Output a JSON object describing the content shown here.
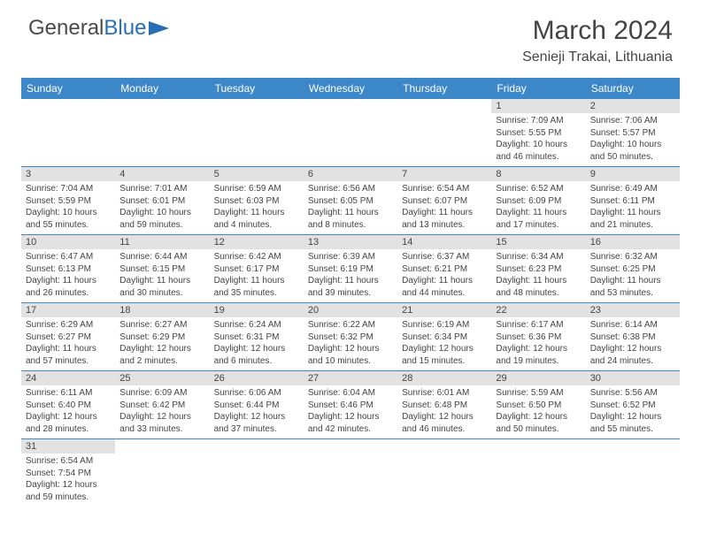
{
  "logo": {
    "part1": "General",
    "part2": "Blue"
  },
  "title": "March 2024",
  "location": "Senieji Trakai, Lithuania",
  "colors": {
    "header_bg": "#3b87c8",
    "header_text": "#ffffff",
    "daynum_bg": "#e2e2e2",
    "text": "#444444",
    "row_border": "#3b87c8",
    "logo_gray": "#4a4a4a",
    "logo_blue": "#2a6fb5"
  },
  "day_headers": [
    "Sunday",
    "Monday",
    "Tuesday",
    "Wednesday",
    "Thursday",
    "Friday",
    "Saturday"
  ],
  "weeks": [
    [
      null,
      null,
      null,
      null,
      null,
      {
        "n": "1",
        "sunrise": "7:09 AM",
        "sunset": "5:55 PM",
        "day_h": "10",
        "day_m": "46"
      },
      {
        "n": "2",
        "sunrise": "7:06 AM",
        "sunset": "5:57 PM",
        "day_h": "10",
        "day_m": "50"
      }
    ],
    [
      {
        "n": "3",
        "sunrise": "7:04 AM",
        "sunset": "5:59 PM",
        "day_h": "10",
        "day_m": "55"
      },
      {
        "n": "4",
        "sunrise": "7:01 AM",
        "sunset": "6:01 PM",
        "day_h": "10",
        "day_m": "59"
      },
      {
        "n": "5",
        "sunrise": "6:59 AM",
        "sunset": "6:03 PM",
        "day_h": "11",
        "day_m": "4"
      },
      {
        "n": "6",
        "sunrise": "6:56 AM",
        "sunset": "6:05 PM",
        "day_h": "11",
        "day_m": "8"
      },
      {
        "n": "7",
        "sunrise": "6:54 AM",
        "sunset": "6:07 PM",
        "day_h": "11",
        "day_m": "13"
      },
      {
        "n": "8",
        "sunrise": "6:52 AM",
        "sunset": "6:09 PM",
        "day_h": "11",
        "day_m": "17"
      },
      {
        "n": "9",
        "sunrise": "6:49 AM",
        "sunset": "6:11 PM",
        "day_h": "11",
        "day_m": "21"
      }
    ],
    [
      {
        "n": "10",
        "sunrise": "6:47 AM",
        "sunset": "6:13 PM",
        "day_h": "11",
        "day_m": "26"
      },
      {
        "n": "11",
        "sunrise": "6:44 AM",
        "sunset": "6:15 PM",
        "day_h": "11",
        "day_m": "30"
      },
      {
        "n": "12",
        "sunrise": "6:42 AM",
        "sunset": "6:17 PM",
        "day_h": "11",
        "day_m": "35"
      },
      {
        "n": "13",
        "sunrise": "6:39 AM",
        "sunset": "6:19 PM",
        "day_h": "11",
        "day_m": "39"
      },
      {
        "n": "14",
        "sunrise": "6:37 AM",
        "sunset": "6:21 PM",
        "day_h": "11",
        "day_m": "44"
      },
      {
        "n": "15",
        "sunrise": "6:34 AM",
        "sunset": "6:23 PM",
        "day_h": "11",
        "day_m": "48"
      },
      {
        "n": "16",
        "sunrise": "6:32 AM",
        "sunset": "6:25 PM",
        "day_h": "11",
        "day_m": "53"
      }
    ],
    [
      {
        "n": "17",
        "sunrise": "6:29 AM",
        "sunset": "6:27 PM",
        "day_h": "11",
        "day_m": "57"
      },
      {
        "n": "18",
        "sunrise": "6:27 AM",
        "sunset": "6:29 PM",
        "day_h": "12",
        "day_m": "2"
      },
      {
        "n": "19",
        "sunrise": "6:24 AM",
        "sunset": "6:31 PM",
        "day_h": "12",
        "day_m": "6"
      },
      {
        "n": "20",
        "sunrise": "6:22 AM",
        "sunset": "6:32 PM",
        "day_h": "12",
        "day_m": "10"
      },
      {
        "n": "21",
        "sunrise": "6:19 AM",
        "sunset": "6:34 PM",
        "day_h": "12",
        "day_m": "15"
      },
      {
        "n": "22",
        "sunrise": "6:17 AM",
        "sunset": "6:36 PM",
        "day_h": "12",
        "day_m": "19"
      },
      {
        "n": "23",
        "sunrise": "6:14 AM",
        "sunset": "6:38 PM",
        "day_h": "12",
        "day_m": "24"
      }
    ],
    [
      {
        "n": "24",
        "sunrise": "6:11 AM",
        "sunset": "6:40 PM",
        "day_h": "12",
        "day_m": "28"
      },
      {
        "n": "25",
        "sunrise": "6:09 AM",
        "sunset": "6:42 PM",
        "day_h": "12",
        "day_m": "33"
      },
      {
        "n": "26",
        "sunrise": "6:06 AM",
        "sunset": "6:44 PM",
        "day_h": "12",
        "day_m": "37"
      },
      {
        "n": "27",
        "sunrise": "6:04 AM",
        "sunset": "6:46 PM",
        "day_h": "12",
        "day_m": "42"
      },
      {
        "n": "28",
        "sunrise": "6:01 AM",
        "sunset": "6:48 PM",
        "day_h": "12",
        "day_m": "46"
      },
      {
        "n": "29",
        "sunrise": "5:59 AM",
        "sunset": "6:50 PM",
        "day_h": "12",
        "day_m": "50"
      },
      {
        "n": "30",
        "sunrise": "5:56 AM",
        "sunset": "6:52 PM",
        "day_h": "12",
        "day_m": "55"
      }
    ],
    [
      {
        "n": "31",
        "sunrise": "6:54 AM",
        "sunset": "7:54 PM",
        "day_h": "12",
        "day_m": "59"
      },
      null,
      null,
      null,
      null,
      null,
      null
    ]
  ]
}
